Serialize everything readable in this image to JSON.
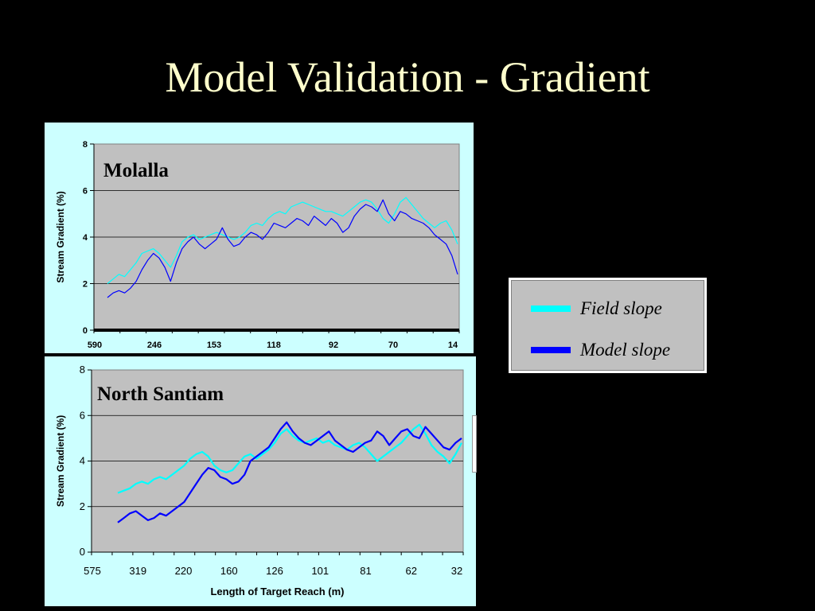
{
  "slide": {
    "title": "Model Validation - Gradient"
  },
  "legend": {
    "items": [
      {
        "label": "Field slope",
        "color": "#00ffff"
      },
      {
        "label": "Model slope",
        "color": "#0000ff"
      }
    ]
  },
  "chart_data": [
    {
      "type": "line",
      "title": "Molalla",
      "ylabel": "Stream Gradient (%)",
      "xlabel": "",
      "ylim": [
        0,
        8
      ],
      "yticks": [
        0,
        2,
        4,
        6,
        8
      ],
      "xticks": [
        "590",
        "246",
        "153",
        "118",
        "92",
        "70",
        "14"
      ],
      "plot_background": "#c0c0c0",
      "grid": true,
      "series": [
        {
          "name": "Field slope",
          "color": "#00ffff",
          "values": [
            2.0,
            2.2,
            2.4,
            2.3,
            2.6,
            2.9,
            3.3,
            3.4,
            3.5,
            3.3,
            3.0,
            2.7,
            3.2,
            3.8,
            4.0,
            4.1,
            3.9,
            4.0,
            4.1,
            4.2,
            4.1,
            4.0,
            3.9,
            4.0,
            4.2,
            4.5,
            4.6,
            4.5,
            4.8,
            5.0,
            5.1,
            5.0,
            5.3,
            5.4,
            5.5,
            5.4,
            5.3,
            5.2,
            5.1,
            5.1,
            5.0,
            4.9,
            5.1,
            5.3,
            5.5,
            5.6,
            5.5,
            5.2,
            4.8,
            4.6,
            5.0,
            5.5,
            5.7,
            5.4,
            5.1,
            4.8,
            4.6,
            4.4,
            4.6,
            4.7,
            4.3,
            3.7
          ]
        },
        {
          "name": "Model slope",
          "color": "#0000ff",
          "values": [
            1.4,
            1.6,
            1.7,
            1.6,
            1.8,
            2.1,
            2.6,
            3.0,
            3.3,
            3.1,
            2.7,
            2.1,
            2.9,
            3.5,
            3.8,
            4.0,
            3.7,
            3.5,
            3.7,
            3.9,
            4.4,
            3.9,
            3.6,
            3.7,
            4.0,
            4.2,
            4.1,
            3.9,
            4.2,
            4.6,
            4.5,
            4.4,
            4.6,
            4.8,
            4.7,
            4.5,
            4.9,
            4.7,
            4.5,
            4.8,
            4.6,
            4.2,
            4.4,
            4.9,
            5.2,
            5.4,
            5.3,
            5.1,
            5.6,
            5.0,
            4.7,
            5.1,
            5.0,
            4.8,
            4.7,
            4.6,
            4.4,
            4.1,
            3.9,
            3.7,
            3.2,
            2.4
          ]
        }
      ]
    },
    {
      "type": "line",
      "title": "North Santiam",
      "ylabel": "Stream Gradient (%)",
      "xlabel": "Length of Target Reach (m)",
      "ylim": [
        0,
        8
      ],
      "yticks": [
        0,
        2,
        4,
        6,
        8
      ],
      "xticks": [
        "575",
        "319",
        "220",
        "160",
        "126",
        "101",
        "81",
        "62",
        "32"
      ],
      "plot_background": "#c0c0c0",
      "grid": true,
      "series": [
        {
          "name": "Field slope",
          "color": "#00ffff",
          "values": [
            2.6,
            2.7,
            2.8,
            3.0,
            3.1,
            3.0,
            3.2,
            3.3,
            3.2,
            3.4,
            3.6,
            3.8,
            4.1,
            4.3,
            4.4,
            4.2,
            3.8,
            3.6,
            3.5,
            3.6,
            3.9,
            4.2,
            4.3,
            4.1,
            4.3,
            4.5,
            4.8,
            5.2,
            5.4,
            5.1,
            4.9,
            4.8,
            4.9,
            5.0,
            4.8,
            4.9,
            4.7,
            4.6,
            4.5,
            4.7,
            4.8,
            4.6,
            4.3,
            4.0,
            4.2,
            4.4,
            4.6,
            4.8,
            5.1,
            5.4,
            5.6,
            5.2,
            4.7,
            4.4,
            4.2,
            3.9,
            4.3,
            4.8
          ]
        },
        {
          "name": "Model slope",
          "color": "#0000ff",
          "values": [
            1.3,
            1.5,
            1.7,
            1.8,
            1.6,
            1.4,
            1.5,
            1.7,
            1.6,
            1.8,
            2.0,
            2.2,
            2.6,
            3.0,
            3.4,
            3.7,
            3.6,
            3.3,
            3.2,
            3.0,
            3.1,
            3.4,
            4.0,
            4.2,
            4.4,
            4.6,
            5.0,
            5.4,
            5.7,
            5.3,
            5.0,
            4.8,
            4.7,
            4.9,
            5.1,
            5.3,
            4.9,
            4.7,
            4.5,
            4.4,
            4.6,
            4.8,
            4.9,
            5.3,
            5.1,
            4.7,
            5.0,
            5.3,
            5.4,
            5.1,
            5.0,
            5.5,
            5.2,
            4.9,
            4.6,
            4.5,
            4.8,
            5.0
          ]
        }
      ]
    }
  ]
}
